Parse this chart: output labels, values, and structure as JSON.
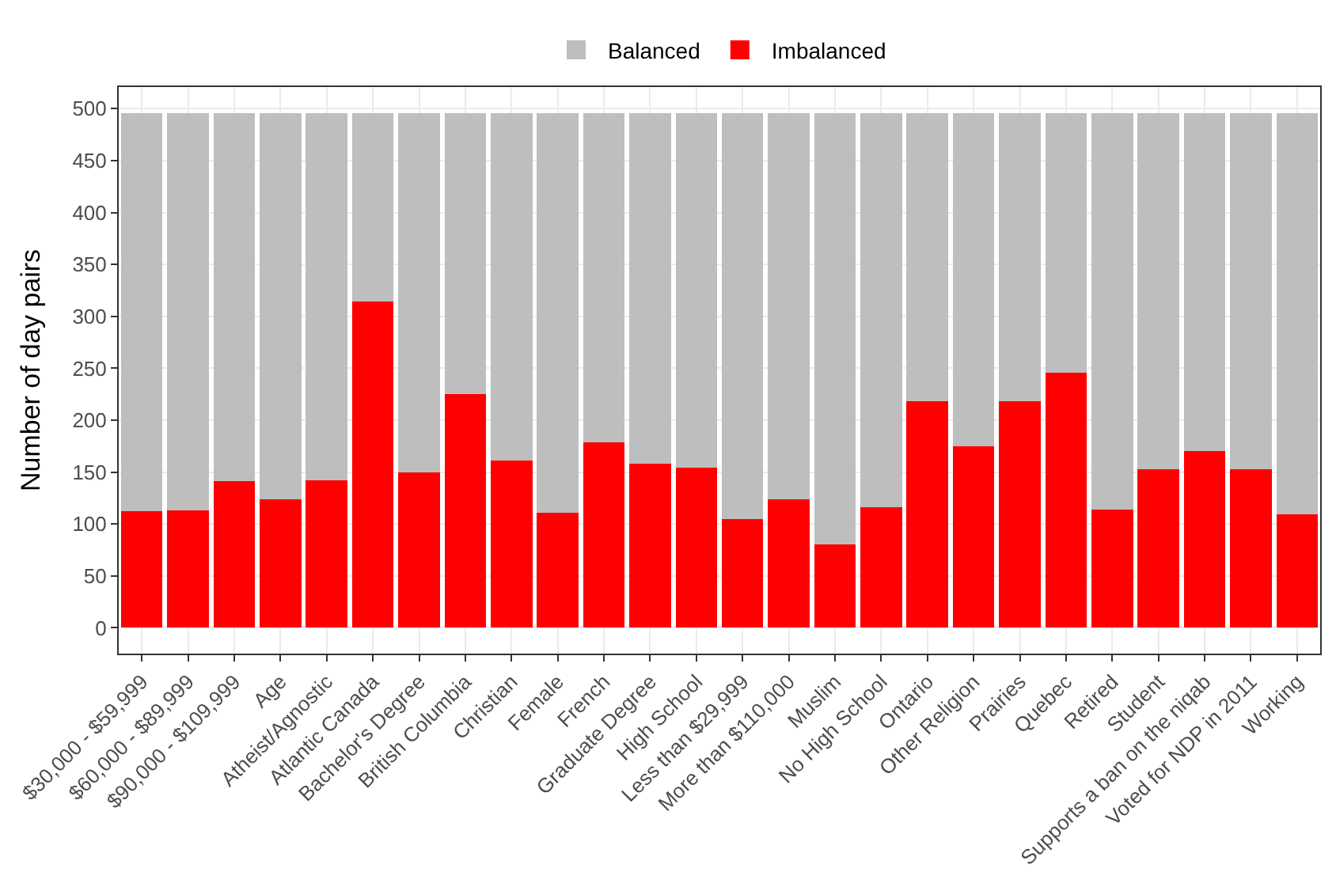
{
  "chart_data": {
    "type": "bar",
    "stacked": true,
    "ylabel": "Number of day pairs",
    "categories": [
      "$30,000 - $59,999",
      "$60,000 - $89,999",
      "$90,000 - $109,999",
      "Age",
      "Atheist/Agnostic",
      "Atlantic Canada",
      "Bachelor's Degree",
      "British Columbia",
      "Christian",
      "Female",
      "French",
      "Graduate Degree",
      "High School",
      "Less than $29,999",
      "More than $110,000",
      "Muslim",
      "No High School",
      "Ontario",
      "Other Religion",
      "Prairies",
      "Quebec",
      "Retired",
      "Student",
      "Supports a ban on the niqab",
      "Voted for NDP in 2011",
      "Working"
    ],
    "series": [
      {
        "name": "Imbalanced",
        "color": "#ff0000",
        "values": [
          112,
          113,
          141,
          124,
          142,
          314,
          150,
          225,
          161,
          111,
          179,
          158,
          154,
          105,
          124,
          80,
          116,
          218,
          175,
          218,
          246,
          114,
          153,
          170,
          153,
          109
        ]
      },
      {
        "name": "Balanced",
        "color": "#bebebe",
        "values": [
          384,
          383,
          355,
          372,
          354,
          182,
          346,
          271,
          335,
          385,
          317,
          338,
          342,
          391,
          372,
          416,
          380,
          278,
          321,
          278,
          250,
          382,
          343,
          326,
          343,
          387
        ]
      }
    ],
    "ylim": [
      -24.8,
      520.8
    ],
    "yticks": [
      0,
      50,
      100,
      150,
      200,
      250,
      300,
      350,
      400,
      450,
      500
    ],
    "grid": true,
    "legend": "top"
  }
}
